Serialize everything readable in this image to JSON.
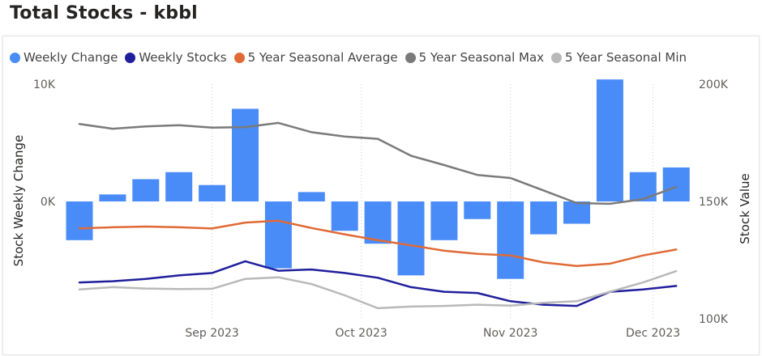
{
  "title": "Total Stocks - kbbl",
  "legend": [
    {
      "label": "Weekly Change",
      "color": "#4a8cf7"
    },
    {
      "label": "Weekly Stocks",
      "color": "#1f1f9c"
    },
    {
      "label": "5 Year Seasonal Average",
      "color": "#e06a35"
    },
    {
      "label": "5 Year Seasonal Max",
      "color": "#7a7a7a"
    },
    {
      "label": "5 Year Seasonal Min",
      "color": "#b9b9b9"
    }
  ],
  "chart_data": {
    "type": "bar",
    "left_axis": {
      "title": "Stock Weekly Change",
      "ticks": [
        "10K",
        "0K"
      ],
      "range": [
        -10000,
        10000
      ]
    },
    "right_axis": {
      "title": "Stock Value",
      "ticks": [
        "200K",
        "150K",
        "100K"
      ],
      "range": [
        100000,
        200000
      ]
    },
    "x_ticks": [
      {
        "label": "Sep 2023",
        "week": 4
      },
      {
        "label": "Oct 2023",
        "week": 8.5
      },
      {
        "label": "Nov 2023",
        "week": 13
      },
      {
        "label": "Dec 2023",
        "week": 17.3
      }
    ],
    "grid": "vertical dotted",
    "series": [
      {
        "name": "Weekly Change",
        "kind": "bar",
        "axis": "left",
        "values": [
          -3300,
          600,
          1900,
          2500,
          1400,
          7900,
          -5700,
          800,
          -2500,
          -3600,
          -6300,
          -3300,
          -1500,
          -6600,
          -2800,
          -1900,
          10400,
          2500,
          2900
        ]
      },
      {
        "name": "Weekly Stocks",
        "kind": "line",
        "axis": "right",
        "values": [
          115500,
          116000,
          117000,
          118500,
          119500,
          124500,
          120500,
          121000,
          119500,
          117500,
          113500,
          111500,
          111000,
          107500,
          106000,
          105500,
          111500,
          112500,
          114000
        ]
      },
      {
        "name": "5 Year Seasonal Average",
        "kind": "line",
        "axis": "right",
        "values": [
          138500,
          139000,
          139300,
          139000,
          138500,
          141000,
          141800,
          138700,
          136000,
          133500,
          131300,
          129000,
          127700,
          127000,
          124000,
          122500,
          123500,
          127000,
          129500
        ]
      },
      {
        "name": "5 Year Seasonal Max",
        "kind": "line",
        "axis": "right",
        "values": [
          183000,
          181000,
          182000,
          182500,
          181500,
          181700,
          183500,
          179500,
          177700,
          176700,
          169500,
          165500,
          161300,
          160000,
          154700,
          149300,
          149000,
          151000,
          156200
        ]
      },
      {
        "name": "5 Year Seasonal Min",
        "kind": "line",
        "axis": "right",
        "values": [
          112500,
          113500,
          112900,
          112700,
          112800,
          117000,
          117700,
          114800,
          110000,
          104500,
          105200,
          105500,
          106000,
          105600,
          106800,
          107500,
          111500,
          115500,
          120300
        ]
      }
    ]
  }
}
